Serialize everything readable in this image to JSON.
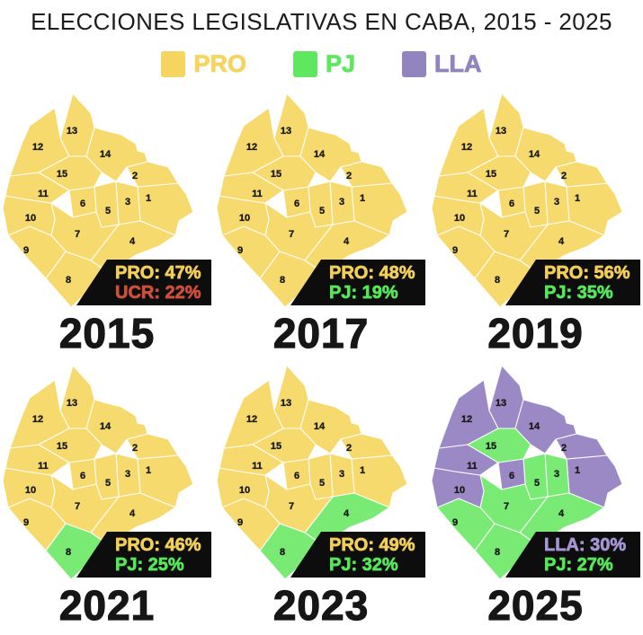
{
  "title": "ELECCIONES LEGISLATIVAS EN CABA, 2015 - 2025",
  "legend": [
    {
      "party": "PRO",
      "label": "PRO",
      "color": "#F5D45F"
    },
    {
      "party": "PJ",
      "label": "PJ",
      "color": "#5FE85F"
    },
    {
      "party": "LLA",
      "label": "LLA",
      "color": "#9184BF"
    }
  ],
  "party_fill": {
    "PRO": "#F7DA6E",
    "PJ": "#79EB74",
    "LLA": "#9A89C5"
  },
  "party_text": {
    "PRO": "#F1CE58",
    "PJ": "#55E659",
    "LLA": "#A695D3",
    "UCR": "#CC4F3B"
  },
  "box_bg": "#0d0d0d",
  "border_color": "#FFFFFF",
  "comuna_ids": [
    "1",
    "2",
    "3",
    "4",
    "5",
    "6",
    "7",
    "8",
    "9",
    "10",
    "11",
    "12",
    "13",
    "14",
    "15"
  ],
  "years": [
    {
      "year": "2015",
      "results": [
        {
          "party": "PRO",
          "value": "47%"
        },
        {
          "party": "UCR",
          "value": "22%"
        }
      ],
      "winners": {
        "default": "PRO",
        "overrides": {}
      }
    },
    {
      "year": "2017",
      "results": [
        {
          "party": "PRO",
          "value": "48%"
        },
        {
          "party": "PJ",
          "value": "19%"
        }
      ],
      "winners": {
        "default": "PRO",
        "overrides": {}
      }
    },
    {
      "year": "2019",
      "results": [
        {
          "party": "PRO",
          "value": "56%"
        },
        {
          "party": "PJ",
          "value": "35%"
        }
      ],
      "winners": {
        "default": "PRO",
        "overrides": {}
      }
    },
    {
      "year": "2021",
      "results": [
        {
          "party": "PRO",
          "value": "46%"
        },
        {
          "party": "PJ",
          "value": "25%"
        }
      ],
      "winners": {
        "default": "PRO",
        "overrides": {
          "8": "PJ"
        }
      }
    },
    {
      "year": "2023",
      "results": [
        {
          "party": "PRO",
          "value": "49%"
        },
        {
          "party": "PJ",
          "value": "32%"
        }
      ],
      "winners": {
        "default": "PRO",
        "overrides": {
          "4": "PJ",
          "8": "PJ"
        }
      }
    },
    {
      "year": "2025",
      "results": [
        {
          "party": "LLA",
          "value": "30%"
        },
        {
          "party": "PJ",
          "value": "27%"
        }
      ],
      "winners": {
        "default": "LLA",
        "overrides": {
          "3": "PJ",
          "4": "PJ",
          "5": "PJ",
          "7": "PJ",
          "8": "PJ",
          "9": "PJ",
          "15": "PJ"
        }
      }
    }
  ],
  "chart_data": {
    "type": "heatmap",
    "subtype": "choropleth-small-multiples",
    "title": "ELECCIONES LEGISLATIVAS EN CABA, 2015 - 2025",
    "legend": [
      "PRO",
      "PJ",
      "LLA"
    ],
    "legend_colors": {
      "PRO": "#F5D45F",
      "PJ": "#5FE85F",
      "LLA": "#9184BF"
    },
    "years": [
      "2015",
      "2017",
      "2019",
      "2021",
      "2023",
      "2025"
    ],
    "top_two_results": [
      {
        "year": "2015",
        "first": {
          "party": "PRO",
          "pct": 47
        },
        "second": {
          "party": "UCR",
          "pct": 22
        }
      },
      {
        "year": "2017",
        "first": {
          "party": "PRO",
          "pct": 48
        },
        "second": {
          "party": "PJ",
          "pct": 19
        }
      },
      {
        "year": "2019",
        "first": {
          "party": "PRO",
          "pct": 56
        },
        "second": {
          "party": "PJ",
          "pct": 35
        }
      },
      {
        "year": "2021",
        "first": {
          "party": "PRO",
          "pct": 46
        },
        "second": {
          "party": "PJ",
          "pct": 25
        }
      },
      {
        "year": "2023",
        "first": {
          "party": "PRO",
          "pct": 49
        },
        "second": {
          "party": "PJ",
          "pct": 32
        }
      },
      {
        "year": "2025",
        "first": {
          "party": "LLA",
          "pct": 30
        },
        "second": {
          "party": "PJ",
          "pct": 27
        }
      }
    ],
    "comuna_winner_by_year": {
      "2015": {
        "1": "PRO",
        "2": "PRO",
        "3": "PRO",
        "4": "PRO",
        "5": "PRO",
        "6": "PRO",
        "7": "PRO",
        "8": "PRO",
        "9": "PRO",
        "10": "PRO",
        "11": "PRO",
        "12": "PRO",
        "13": "PRO",
        "14": "PRO",
        "15": "PRO"
      },
      "2017": {
        "1": "PRO",
        "2": "PRO",
        "3": "PRO",
        "4": "PRO",
        "5": "PRO",
        "6": "PRO",
        "7": "PRO",
        "8": "PRO",
        "9": "PRO",
        "10": "PRO",
        "11": "PRO",
        "12": "PRO",
        "13": "PRO",
        "14": "PRO",
        "15": "PRO"
      },
      "2019": {
        "1": "PRO",
        "2": "PRO",
        "3": "PRO",
        "4": "PRO",
        "5": "PRO",
        "6": "PRO",
        "7": "PRO",
        "8": "PRO",
        "9": "PRO",
        "10": "PRO",
        "11": "PRO",
        "12": "PRO",
        "13": "PRO",
        "14": "PRO",
        "15": "PRO"
      },
      "2021": {
        "1": "PRO",
        "2": "PRO",
        "3": "PRO",
        "4": "PRO",
        "5": "PRO",
        "6": "PRO",
        "7": "PRO",
        "8": "PJ",
        "9": "PRO",
        "10": "PRO",
        "11": "PRO",
        "12": "PRO",
        "13": "PRO",
        "14": "PRO",
        "15": "PRO"
      },
      "2023": {
        "1": "PRO",
        "2": "PRO",
        "3": "PRO",
        "4": "PJ",
        "5": "PRO",
        "6": "PRO",
        "7": "PRO",
        "8": "PJ",
        "9": "PRO",
        "10": "PRO",
        "11": "PRO",
        "12": "PRO",
        "13": "PRO",
        "14": "PRO",
        "15": "PRO"
      },
      "2025": {
        "1": "LLA",
        "2": "LLA",
        "3": "PJ",
        "4": "PJ",
        "5": "PJ",
        "6": "LLA",
        "7": "PJ",
        "8": "PJ",
        "9": "PJ",
        "10": "LLA",
        "11": "LLA",
        "12": "LLA",
        "13": "LLA",
        "14": "LLA",
        "15": "PJ"
      }
    }
  }
}
